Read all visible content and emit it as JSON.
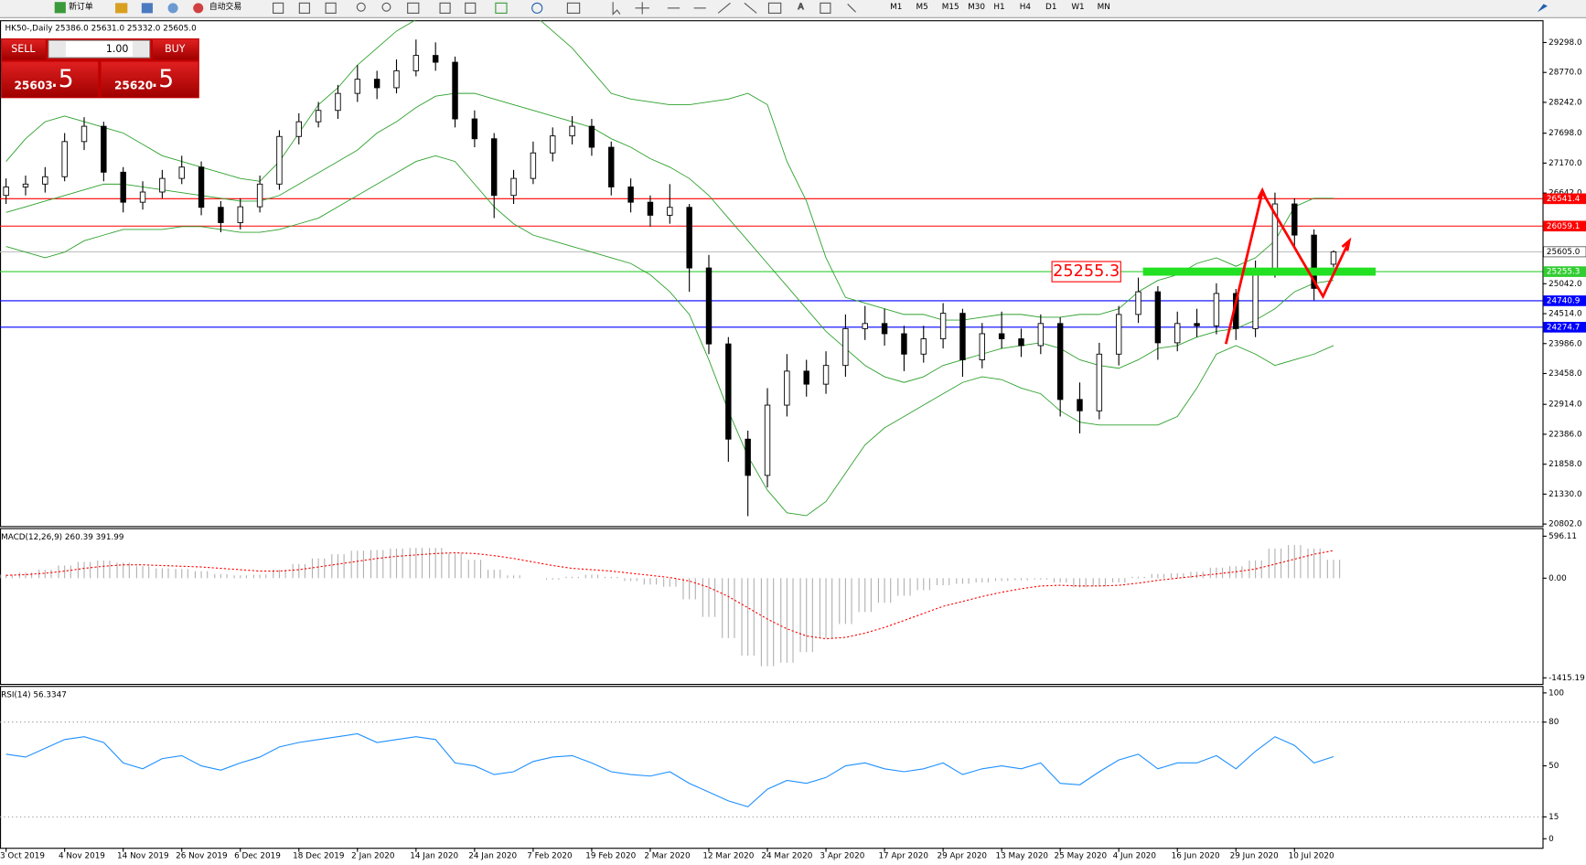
{
  "toolbar": {
    "new_order": "新订单",
    "auto_trading": "自动交易",
    "timeframes": [
      "M1",
      "M5",
      "M15",
      "M30",
      "H1",
      "H4",
      "D1",
      "W1",
      "MN"
    ]
  },
  "trade_panel": {
    "sell": "SELL",
    "buy": "BUY",
    "lot": "1.00",
    "sell_price": "25603",
    "sell_price_pip": ".5",
    "buy_price": "25620",
    "buy_price_pip": ".5"
  },
  "chart_data": [
    {
      "type": "candlestick",
      "title": "HK50-,Daily  25386.0 25631.0 25332.0 25605.0",
      "categories": [
        "3 Oct 2019",
        null,
        null,
        "4 Nov 2019",
        null,
        null,
        "14 Nov 2019",
        null,
        null,
        "26 Nov 2019",
        null,
        null,
        "6 Dec 2019",
        null,
        null,
        "18 Dec 2019",
        null,
        null,
        "2 Jan 2020",
        null,
        null,
        "14 Jan 2020",
        null,
        null,
        "24 Jan 2020",
        null,
        null,
        "7 Feb 2020",
        null,
        null,
        "19 Feb 2020",
        null,
        null,
        "2 Mar 2020",
        null,
        null,
        "12 Mar 2020",
        null,
        null,
        "24 Mar 2020",
        null,
        null,
        "3 Apr 2020",
        null,
        null,
        "17 Apr 2020",
        null,
        null,
        "29 Apr 2020",
        null,
        null,
        "13 May 2020",
        null,
        null,
        "25 May 2020",
        null,
        null,
        "4 Jun 2020",
        null,
        null,
        "16 Jun 2020",
        null,
        null,
        "29 Jun 2020",
        null,
        null,
        "10 Jul 2020",
        null,
        null
      ],
      "open": [
        26600,
        26750,
        26800,
        26930,
        27550,
        27820,
        27010,
        26480,
        26660,
        26900,
        27100,
        26390,
        26120,
        26400,
        26800,
        27640,
        27900,
        28100,
        28400,
        28650,
        28500,
        28800,
        29070,
        28950,
        27950,
        27600,
        26600,
        26900,
        27350,
        27650,
        27820,
        27450,
        26750,
        26480,
        26250,
        26390,
        25320,
        23980,
        22300,
        21660,
        22900,
        23500,
        23270,
        23600,
        24250,
        24340,
        24160,
        23800,
        24070,
        24520,
        23700,
        24160,
        24070,
        23950,
        24340,
        23000,
        22800,
        23800,
        24500,
        24900,
        24000,
        24340,
        24300,
        24870,
        24250,
        25300,
        26450,
        25900,
        25386
      ],
      "high": [
        26900,
        26950,
        27100,
        27700,
        27980,
        27900,
        27100,
        26850,
        27050,
        27300,
        27200,
        26500,
        26550,
        26950,
        27750,
        28050,
        28250,
        28550,
        28900,
        28800,
        29000,
        29350,
        29300,
        29050,
        28100,
        27700,
        27050,
        27550,
        27800,
        28000,
        27950,
        27550,
        26900,
        26600,
        26800,
        26450,
        25550,
        24100,
        22450,
        23200,
        23800,
        23700,
        23850,
        24500,
        24650,
        24600,
        24300,
        24300,
        24700,
        24600,
        24350,
        24550,
        24250,
        24500,
        24450,
        23300,
        24000,
        24650,
        25150,
        25000,
        24550,
        24600,
        25050,
        24950,
        25450,
        26650,
        26550,
        26000,
        25631
      ],
      "low": [
        26450,
        26600,
        26650,
        26850,
        27400,
        26850,
        26300,
        26350,
        26550,
        26800,
        26250,
        25950,
        26000,
        26300,
        26700,
        27500,
        27800,
        27950,
        28250,
        28300,
        28400,
        28700,
        28800,
        27800,
        27450,
        26200,
        26450,
        26800,
        27200,
        27500,
        27300,
        26600,
        26300,
        26050,
        26100,
        24900,
        23800,
        21900,
        20940,
        21450,
        22700,
        23050,
        23100,
        23400,
        24050,
        23950,
        23500,
        23650,
        23900,
        23400,
        23550,
        23900,
        23750,
        23800,
        22700,
        22400,
        22650,
        23600,
        24350,
        23700,
        23850,
        24100,
        24150,
        24050,
        24100,
        25150,
        25700,
        24750,
        25332
      ],
      "close": [
        26750,
        26800,
        26930,
        27550,
        27820,
        27010,
        26480,
        26660,
        26900,
        27100,
        26390,
        26120,
        26400,
        26800,
        27640,
        27900,
        28100,
        28400,
        28650,
        28500,
        28800,
        29070,
        28950,
        27950,
        27600,
        26600,
        26900,
        27350,
        27650,
        27820,
        27450,
        26750,
        26480,
        26250,
        26390,
        25320,
        23980,
        22300,
        21660,
        22900,
        23500,
        23270,
        23600,
        24250,
        24340,
        24160,
        23800,
        24070,
        24520,
        23700,
        24160,
        24070,
        23950,
        24340,
        23000,
        22800,
        23800,
        24500,
        24900,
        24000,
        24340,
        24300,
        24870,
        24250,
        25300,
        26450,
        25900,
        24960,
        25605
      ],
      "bull_color": "#ffffff",
      "bear_color": "#000000",
      "bands": {
        "color": "#2ca02c",
        "upper": [
          27200,
          27600,
          27900,
          28000,
          27900,
          27800,
          27700,
          27500,
          27300,
          27200,
          27100,
          27000,
          26900,
          26850,
          27200,
          27700,
          28200,
          28500,
          28900,
          29200,
          29500,
          29700,
          29800,
          29900,
          30200,
          30300,
          30100,
          29800,
          29500,
          29200,
          28800,
          28400,
          28300,
          28250,
          28200,
          28200,
          28250,
          28300,
          28400,
          28200,
          27200,
          26500,
          25500,
          24800,
          24700,
          24600,
          24500,
          24500,
          24400,
          24400,
          24450,
          24500,
          24500,
          24450,
          24450,
          24500,
          24500,
          24600,
          24900,
          25100,
          25200,
          25400,
          25500,
          25350,
          25500,
          25800,
          26400,
          26550,
          26550
        ],
        "middle": [
          26300,
          26400,
          26500,
          26600,
          26700,
          26800,
          26800,
          26750,
          26700,
          26650,
          26600,
          26550,
          26500,
          26500,
          26600,
          26800,
          27000,
          27200,
          27400,
          27700,
          27900,
          28150,
          28350,
          28400,
          28400,
          28300,
          28200,
          28100,
          28000,
          27900,
          27800,
          27600,
          27450,
          27250,
          27100,
          26900,
          26600,
          26200,
          25800,
          25400,
          25000,
          24600,
          24200,
          23900,
          23600,
          23400,
          23300,
          23400,
          23600,
          23700,
          23800,
          23900,
          23950,
          24000,
          23900,
          23700,
          23600,
          23550,
          23700,
          23900,
          23950,
          24100,
          24200,
          24250,
          24400,
          24600,
          24900,
          25050,
          25100
        ],
        "lower": [
          25700,
          25600,
          25500,
          25600,
          25800,
          25900,
          26000,
          26000,
          26000,
          26050,
          26050,
          26000,
          25950,
          25950,
          26000,
          26100,
          26200,
          26400,
          26600,
          26800,
          27000,
          27200,
          27300,
          27200,
          26800,
          26400,
          26100,
          25900,
          25800,
          25700,
          25600,
          25500,
          25400,
          25200,
          24900,
          24500,
          23700,
          22800,
          22000,
          21400,
          21000,
          20950,
          21200,
          21700,
          22200,
          22500,
          22700,
          22900,
          23100,
          23300,
          23400,
          23350,
          23200,
          23100,
          22800,
          22600,
          22550,
          22550,
          22550,
          22550,
          22700,
          23200,
          23800,
          23950,
          23800,
          23600,
          23700,
          23800,
          23950
        ]
      },
      "ylim": [
        20766,
        29691
      ],
      "yticks": [
        {
          "value": 29298,
          "label": "29298.0"
        },
        {
          "value": 28770,
          "label": "28770.0"
        },
        {
          "value": 28242,
          "label": "28242.0"
        },
        {
          "value": 27698,
          "label": "27698.0"
        },
        {
          "value": 27170,
          "label": "27170.0"
        },
        {
          "value": 26642,
          "label": "26642.0"
        },
        {
          "value": 25042,
          "label": "25042.0"
        },
        {
          "value": 24514,
          "label": "24514.0"
        },
        {
          "value": 23986,
          "label": "23986.0"
        },
        {
          "value": 23458,
          "label": "23458.0"
        },
        {
          "value": 22914,
          "label": "22914.0"
        },
        {
          "value": 22386,
          "label": "22386.0"
        },
        {
          "value": 21858,
          "label": "21858.0"
        },
        {
          "value": 21330,
          "label": "21330.0"
        },
        {
          "value": 20802,
          "label": "20802.0"
        }
      ],
      "levels": [
        {
          "value": 26541.4,
          "color": "#ff0000"
        },
        {
          "value": 26059.1,
          "color": "#ff0000"
        },
        {
          "value": 25605,
          "label": "25605.0",
          "color": "#c0c0c0"
        },
        {
          "value": 25255.3,
          "color": "#32cd32"
        },
        {
          "value": 24740.9,
          "color": "#0000ff"
        },
        {
          "value": 24274.7,
          "color": "#0000ff"
        }
      ],
      "annotation": 25255.3
    },
    {
      "type": "macd",
      "title": "MACD(12,26,9) 260.39 391.99",
      "macd": [
        50,
        80,
        120,
        180,
        230,
        250,
        220,
        170,
        140,
        130,
        100,
        60,
        40,
        50,
        120,
        200,
        280,
        340,
        390,
        400,
        420,
        430,
        430,
        350,
        260,
        120,
        40,
        0,
        -20,
        20,
        50,
        20,
        -40,
        -90,
        -120,
        -300,
        -550,
        -850,
        -1100,
        -1250,
        -1200,
        -1050,
        -850,
        -650,
        -480,
        -350,
        -250,
        -170,
        -100,
        -80,
        -60,
        -40,
        -30,
        -20,
        -60,
        -130,
        -120,
        -60,
        20,
        60,
        70,
        90,
        150,
        170,
        250,
        420,
        470,
        420,
        260.39
      ],
      "signal": [
        40,
        50,
        70,
        100,
        140,
        170,
        190,
        190,
        180,
        170,
        160,
        140,
        120,
        100,
        100,
        120,
        160,
        200,
        240,
        280,
        310,
        330,
        350,
        360,
        350,
        320,
        280,
        230,
        180,
        140,
        120,
        100,
        70,
        40,
        10,
        -40,
        -130,
        -260,
        -420,
        -580,
        -720,
        -820,
        -860,
        -840,
        -780,
        -700,
        -600,
        -500,
        -400,
        -330,
        -260,
        -200,
        -150,
        -110,
        -100,
        -110,
        -110,
        -100,
        -70,
        -30,
        0,
        30,
        60,
        90,
        130,
        200,
        270,
        340,
        391.99
      ],
      "hist_color": "#b0b0b0",
      "signal_color": "#ff0000",
      "ylim": [
        -1501,
        711
      ],
      "yticks": [
        596.11,
        {
          "value": 0,
          "label": "0.00"
        },
        -1415.19
      ]
    },
    {
      "type": "line",
      "title": "RSI(14) 56.3347",
      "values": [
        58,
        56,
        62,
        68,
        70,
        66,
        52,
        48,
        55,
        57,
        50,
        47,
        52,
        56,
        63,
        66,
        68,
        70,
        72,
        66,
        68,
        70,
        68,
        52,
        50,
        44,
        46,
        53,
        56,
        57,
        52,
        46,
        44,
        43,
        46,
        38,
        32,
        26,
        22,
        34,
        40,
        38,
        42,
        50,
        52,
        48,
        46,
        48,
        52,
        44,
        48,
        50,
        48,
        52,
        38,
        37,
        46,
        54,
        58,
        48,
        52,
        52,
        57,
        48,
        60,
        70,
        64,
        52,
        56.3347
      ],
      "color": "#1e90ff",
      "ylim": [
        -6.2,
        104.8
      ],
      "yticks": [
        100,
        80,
        50,
        15,
        0
      ],
      "levels": [
        80,
        15
      ]
    }
  ]
}
